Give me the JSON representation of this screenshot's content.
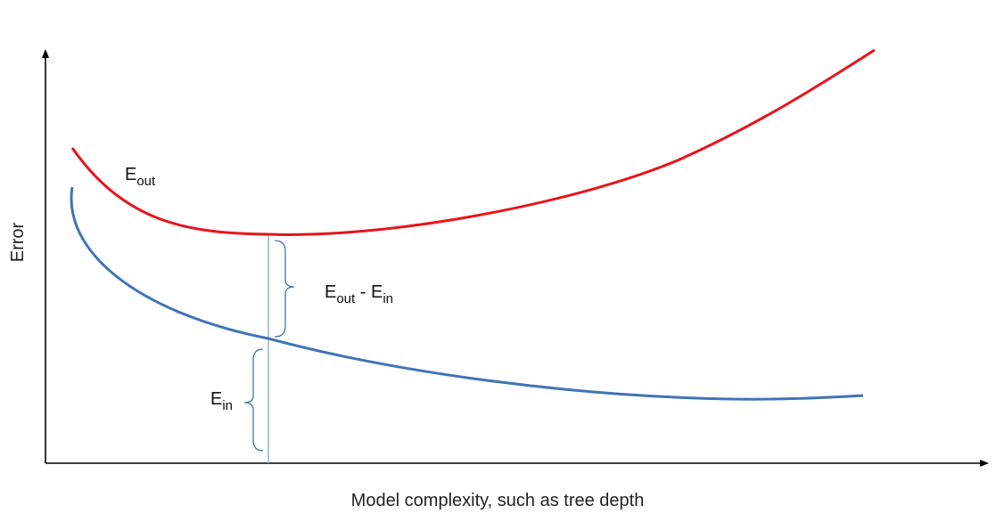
{
  "diagram": {
    "x_axis_label": "Model complexity, such as tree depth",
    "y_axis_label": "Error",
    "curves": {
      "e_out": {
        "main": "E",
        "sub": "out",
        "color": "#e8141c"
      },
      "e_in": {
        "main": "E",
        "sub": "in",
        "color": "#3f74b8"
      }
    },
    "gap_label": {
      "left_main": "E",
      "left_sub": "out",
      "separator": " - ",
      "right_main": "E",
      "right_sub": "in"
    },
    "ein_bracket_label": {
      "main": "E",
      "sub": "in"
    },
    "marker_color": "#9bbad8",
    "axis_color": "#000000"
  }
}
